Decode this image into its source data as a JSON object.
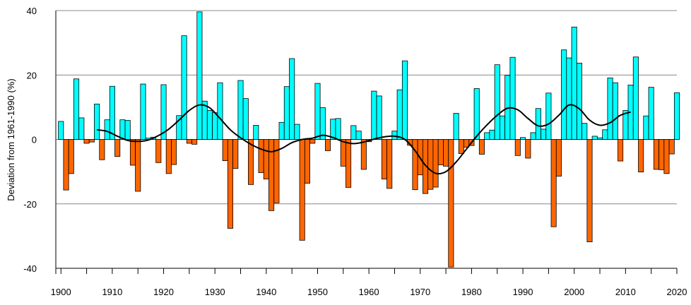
{
  "chart_data": {
    "type": "bar",
    "title": "",
    "xlabel": "",
    "ylabel": "Deviation from 1961-1990 (%)",
    "xlim": [
      1899,
      2020
    ],
    "ylim": [
      -40,
      40
    ],
    "x_ticks": [
      1900,
      1910,
      1920,
      1930,
      1940,
      1950,
      1960,
      1970,
      1980,
      1990,
      2000,
      2010,
      2020
    ],
    "y_ticks": [
      40,
      20,
      0,
      -20,
      -40
    ],
    "grid": "horizontal",
    "colors": {
      "positive": "#00ffff",
      "negative": "#ff6600",
      "trend": "#000000",
      "grid": "#888888"
    },
    "series": [
      {
        "kind": "bar",
        "start_year": 1900,
        "values": [
          5.6,
          -15.7,
          -10.6,
          18.8,
          6.7,
          -1.2,
          -0.8,
          11.0,
          -6.3,
          6.1,
          16.5,
          -5.3,
          6.1,
          5.9,
          -8.0,
          -16.1,
          17.2,
          0.4,
          0.7,
          -7.2,
          17.0,
          -10.6,
          -7.8,
          7.4,
          32.2,
          -1.2,
          -1.5,
          39.6,
          11.9,
          9.0,
          8.3,
          17.6,
          -6.6,
          -27.6,
          -9.0,
          18.3,
          12.7,
          -14.0,
          4.4,
          -10.3,
          -12.3,
          -22.1,
          -19.7,
          5.3,
          16.4,
          25.1,
          4.7,
          -31.3,
          -13.6,
          -1.2,
          17.4,
          9.9,
          -3.5,
          6.3,
          6.5,
          -8.3,
          -14.9,
          4.3,
          2.6,
          -9.3,
          -0.7,
          15.0,
          13.5,
          -12.3,
          -15.2,
          2.6,
          15.4,
          24.4,
          -1.8,
          -15.6,
          -11.0,
          -16.8,
          -15.5,
          -14.8,
          -7.9,
          -8.3,
          -39.6,
          8.1,
          -4.4,
          -2.4,
          -1.9,
          15.8,
          -4.6,
          2.1,
          2.9,
          23.2,
          7.3,
          19.9,
          25.5,
          -5.0,
          0.6,
          -5.8,
          2.1,
          9.6,
          3.2,
          14.4,
          -27.1,
          -11.4,
          27.8,
          25.3,
          34.9,
          23.7,
          5.0,
          -31.8,
          1.0,
          0.5,
          3.0,
          19.1,
          17.6,
          -6.7,
          9.0,
          16.9,
          25.6,
          -10.1,
          7.3,
          16.2,
          -9.3,
          -9.4,
          -10.6,
          -4.5,
          14.5
        ]
      },
      {
        "kind": "line",
        "x": [
          1907,
          1909,
          1911,
          1913,
          1915,
          1917,
          1919,
          1921,
          1923,
          1925,
          1927,
          1929,
          1931,
          1933,
          1935,
          1937,
          1939,
          1941,
          1943,
          1945,
          1947,
          1949,
          1951,
          1953,
          1955,
          1957,
          1959,
          1961,
          1963,
          1965,
          1967,
          1969,
          1971,
          1973,
          1975,
          1977,
          1979,
          1981,
          1983,
          1985,
          1987,
          1989,
          1991,
          1993,
          1995,
          1997,
          1999,
          2001,
          2003,
          2005,
          2007,
          2009,
          2011
        ],
        "y": [
          3.0,
          2.5,
          1.0,
          -0.3,
          -0.6,
          -0.2,
          1.2,
          3.2,
          6.0,
          9.0,
          10.7,
          9.8,
          6.5,
          3.0,
          0.5,
          -1.5,
          -3.0,
          -3.8,
          -2.8,
          -1.0,
          0.0,
          0.4,
          1.3,
          0.6,
          -0.7,
          -1.3,
          -0.8,
          0.1,
          0.8,
          1.0,
          0.0,
          -3.5,
          -8.0,
          -10.5,
          -10.0,
          -7.0,
          -3.0,
          1.0,
          4.5,
          7.5,
          9.7,
          9.2,
          6.5,
          4.2,
          4.8,
          7.5,
          10.7,
          9.5,
          6.0,
          4.4,
          5.2,
          7.5,
          8.5
        ]
      }
    ]
  }
}
